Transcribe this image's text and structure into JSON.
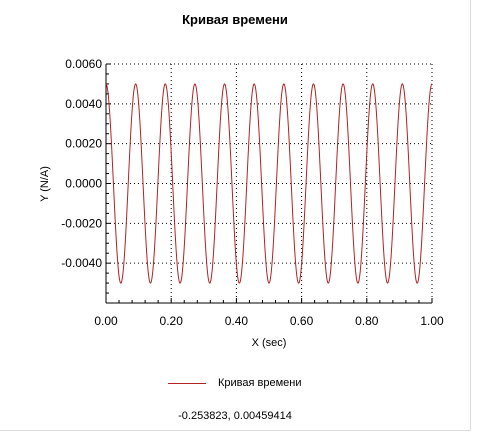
{
  "window": {
    "title": "Кривая времени",
    "cursor_readout": "-0.253823, 0.00459414"
  },
  "colors": {
    "series": "#b22222",
    "grid": "#000000",
    "axis": "#000000",
    "background": "#ffffff"
  },
  "chart_data": {
    "type": "line",
    "title": "Кривая времени",
    "xlabel": "X (sec)",
    "ylabel": "Y (N/A)",
    "xlim": [
      0,
      1
    ],
    "ylim": [
      -0.006,
      0.006
    ],
    "x_ticks": [
      "0.00",
      "0.20",
      "0.40",
      "0.60",
      "0.80",
      "1.00"
    ],
    "y_ticks": [
      "0.0060",
      "0.0040",
      "0.0020",
      "0.0000",
      "-0.0020",
      "-0.0040"
    ],
    "grid": true,
    "legend": "bottom-center",
    "series": [
      {
        "name": "Кривая времени",
        "function": "sine",
        "amplitude": 0.005,
        "frequency_hz": 11,
        "phase_start": "peak",
        "x_range": [
          0,
          1
        ]
      }
    ]
  }
}
